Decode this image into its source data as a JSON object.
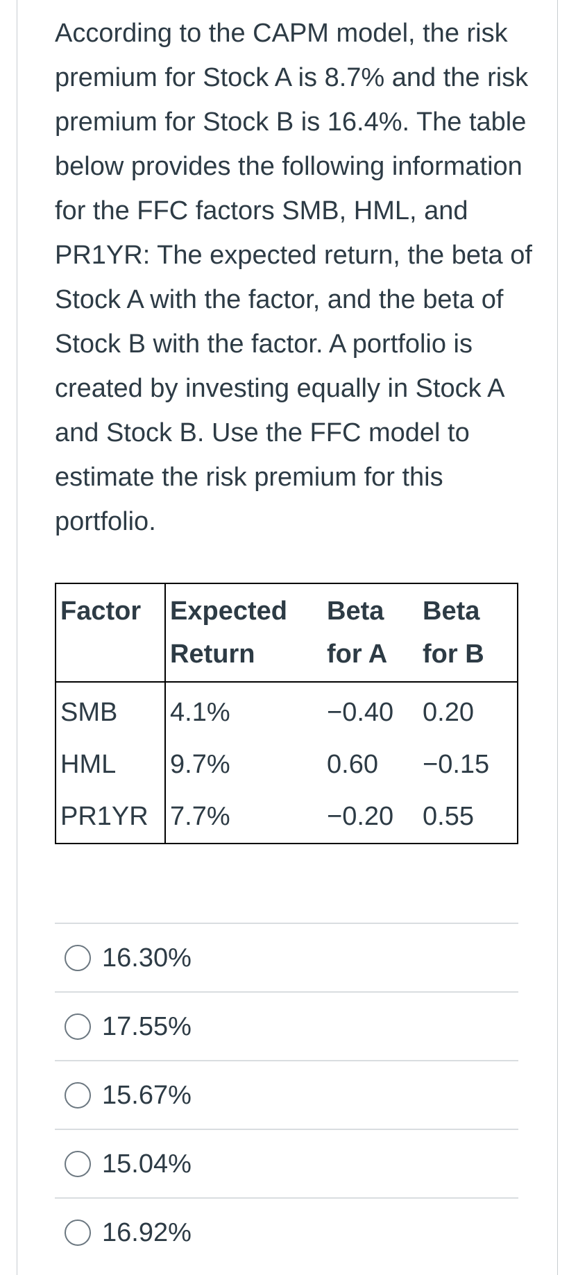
{
  "question": {
    "text": "According to the CAPM model, the risk premium for Stock A is 8.7% and the risk premium for Stock B is 16.4%. The table below provides the following information for the FFC factors SMB, HML, and PR1YR: The expected return, the beta of Stock A with the factor, and the beta of Stock B with the factor. A portfolio is created by investing equally in Stock A and Stock B. Use the FFC model to estimate the risk premium for this portfolio."
  },
  "table": {
    "headers": {
      "factor": "Factor",
      "expected_return": "Expected Return",
      "beta_a": "Beta for A",
      "beta_b": "Beta for B"
    },
    "rows": [
      {
        "factor": "SMB",
        "expected_return": "4.1%",
        "beta_a": "−0.40",
        "beta_b": "0.20"
      },
      {
        "factor": "HML",
        "expected_return": "9.7%",
        "beta_a": "0.60",
        "beta_b": "−0.15"
      },
      {
        "factor": "PR1YR",
        "expected_return": "7.7%",
        "beta_a": "−0.20",
        "beta_b": "0.55"
      }
    ]
  },
  "options": [
    {
      "label": "16.30%",
      "selected": false
    },
    {
      "label": "17.55%",
      "selected": false
    },
    {
      "label": "15.67%",
      "selected": false
    },
    {
      "label": "15.04%",
      "selected": false
    },
    {
      "label": "16.92%",
      "selected": false
    }
  ],
  "colors": {
    "text": "#2d3b45",
    "table_border": "#000000",
    "divider": "#d9dde0",
    "radio_border": "#6b7780"
  }
}
